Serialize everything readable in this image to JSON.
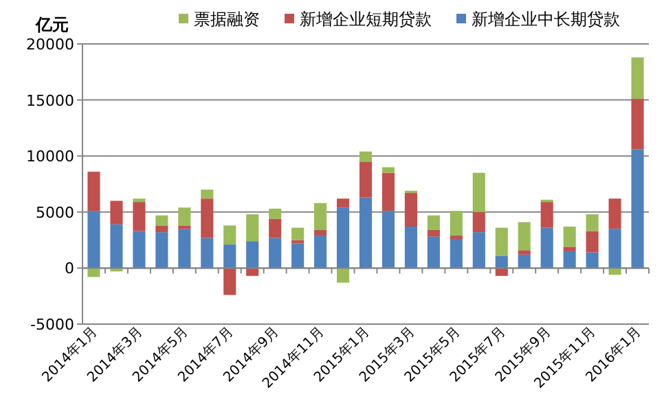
{
  "chart_data": {
    "type": "bar",
    "stacked": true,
    "ylabel": "亿元",
    "categories": [
      "2014年1月",
      null,
      "2014年3月",
      null,
      "2014年5月",
      null,
      "2014年7月",
      null,
      "2014年9月",
      null,
      "2014年11月",
      null,
      "2015年1月",
      null,
      "2015年3月",
      null,
      "2015年5月",
      null,
      "2015年7月",
      null,
      "2015年9月",
      null,
      "2015年11月",
      null,
      "2016年1月"
    ],
    "series": [
      {
        "name": "新增企业中长期贷款",
        "color": "#4f81bd",
        "values": [
          5100,
          3900,
          3300,
          3200,
          3500,
          2700,
          2100,
          2400,
          2700,
          2200,
          2900,
          5400,
          6300,
          5100,
          3700,
          2800,
          2600,
          3200,
          1100,
          1200,
          3600,
          1500,
          1400,
          3500,
          10600
        ]
      },
      {
        "name": "新增企业短期贷款",
        "color": "#c0504d",
        "values": [
          3500,
          2100,
          2600,
          600,
          300,
          3500,
          -2400,
          -700,
          1700,
          300,
          500,
          800,
          3200,
          3400,
          3000,
          600,
          300,
          1800,
          -700,
          400,
          2300,
          400,
          1900,
          2700,
          4500
        ]
      },
      {
        "name": "票据融资",
        "color": "#9bbb59",
        "values": [
          -800,
          -300,
          300,
          900,
          1600,
          800,
          1700,
          2400,
          900,
          1100,
          2400,
          -1300,
          900,
          500,
          200,
          1300,
          2200,
          3500,
          2500,
          2500,
          200,
          1800,
          1500,
          -600,
          3700
        ]
      }
    ],
    "ylim": [
      -5000,
      20000
    ],
    "yticks": [
      -5000,
      0,
      5000,
      10000,
      15000,
      20000
    ],
    "grid": "y",
    "legend": "top"
  }
}
